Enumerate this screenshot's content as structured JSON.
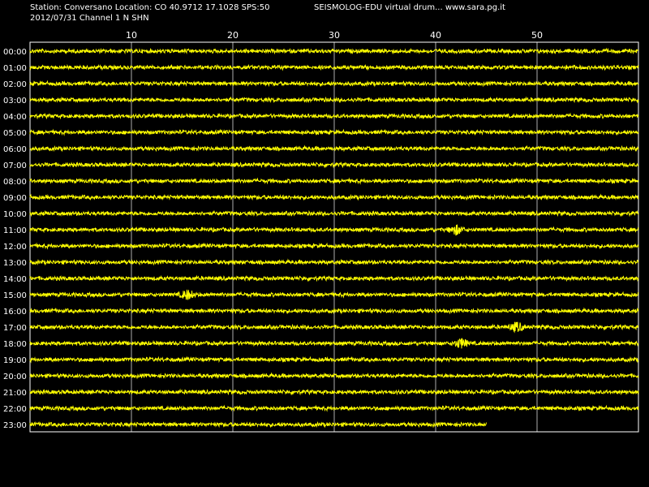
{
  "header": {
    "station_line": "Station: Conversano Location: CO 40.9712 17.1028 SPS:50",
    "date_line": "2012/07/31  Channel 1 N SHN",
    "app_line": "SEISMOLOG-EDU virtual drum... www.sara.pg.it"
  },
  "drum": {
    "minute_ticks": [
      "10",
      "20",
      "30",
      "40",
      "50"
    ],
    "hours": [
      "00:00",
      "01:00",
      "02:00",
      "03:00",
      "04:00",
      "05:00",
      "06:00",
      "07:00",
      "08:00",
      "09:00",
      "10:00",
      "11:00",
      "12:00",
      "13:00",
      "14:00",
      "15:00",
      "16:00",
      "17:00",
      "18:00",
      "19:00",
      "20:00",
      "21:00",
      "22:00",
      "23:00"
    ],
    "minutes_per_line": 60,
    "last_line_minutes": 45,
    "colors": {
      "background": "#000000",
      "trace": "#ffff00",
      "grid": "#ffffff",
      "text": "#ffffff"
    },
    "events": [
      {
        "hour": "15:00",
        "minute": 15.5
      },
      {
        "hour": "18:00",
        "minute": 42.5
      },
      {
        "hour": "17:00",
        "minute": 48
      },
      {
        "hour": "11:00",
        "minute": 42
      }
    ]
  }
}
